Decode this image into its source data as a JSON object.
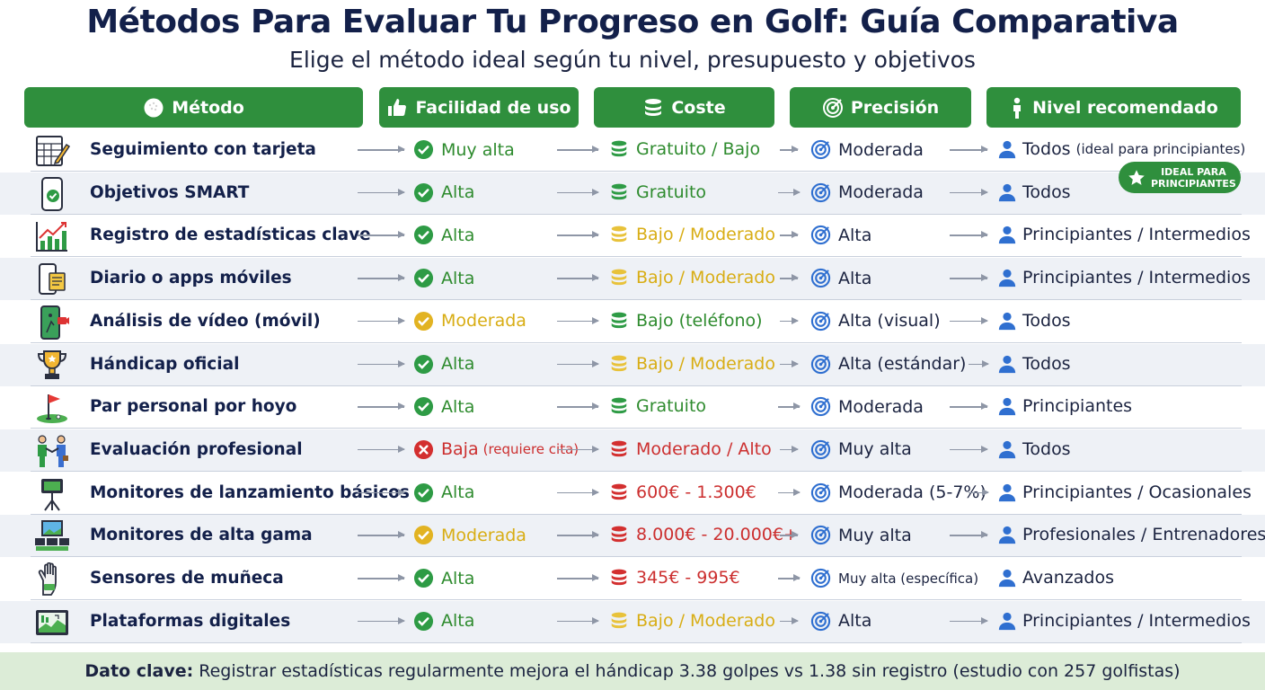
{
  "title": "Métodos Para Evaluar Tu Progreso en Golf: Guía Comparativa",
  "subtitle": "Elige el método ideal según tu nivel, presupuesto y objetivos",
  "headers": {
    "method": "Método",
    "ease": "Facilidad de uso",
    "cost": "Coste",
    "precision": "Precisión",
    "level": "Nivel recomendado"
  },
  "rows": [
    {
      "icon": "scorecard-pencil-icon",
      "method": "Seguimiento con tarjeta",
      "ease": "Muy alta",
      "ease_status": "check",
      "cost": "Gratuito / Bajo",
      "cost_level": "green",
      "precision": "Moderada",
      "level": "Todos",
      "level_note": "(ideal para principiantes)"
    },
    {
      "icon": "smartphone-check-icon",
      "method": "Objetivos SMART",
      "ease": "Alta",
      "ease_status": "check",
      "cost": "Gratuito",
      "cost_level": "green",
      "precision": "Moderada",
      "level": "Todos"
    },
    {
      "icon": "bar-chart-growth-icon",
      "method": "Registro de estadísticas clave",
      "ease": "Alta",
      "ease_status": "check",
      "cost": "Bajo / Moderado",
      "cost_level": "yellow",
      "precision": "Alta",
      "level": "Principiantes / Intermedios"
    },
    {
      "icon": "phone-notebook-icon",
      "method": "Diario o apps móviles",
      "ease": "Alta",
      "ease_status": "check",
      "cost": "Bajo / Moderado",
      "cost_level": "yellow",
      "precision": "Alta",
      "level": "Principiantes / Intermedios"
    },
    {
      "icon": "phone-video-icon",
      "method": "Análisis de vídeo (móvil)",
      "ease": "Moderada",
      "ease_status": "moderate",
      "cost": "Bajo (teléfono)",
      "cost_level": "green",
      "precision": "Alta (visual)",
      "level": "Todos"
    },
    {
      "icon": "trophy-icon",
      "method": "Hándicap oficial",
      "ease": "Alta",
      "ease_status": "check",
      "cost": "Bajo / Moderado",
      "cost_level": "yellow",
      "precision": "Alta (estándar)",
      "level": "Todos"
    },
    {
      "icon": "golf-flag-icon",
      "method": "Par personal por hoyo",
      "ease": "Alta",
      "ease_status": "check",
      "cost": "Gratuito",
      "cost_level": "green",
      "precision": "Moderada",
      "level": "Principiantes"
    },
    {
      "icon": "handshake-coach-icon",
      "method": "Evaluación profesional",
      "ease": "Baja",
      "ease_note": "(requiere cita)",
      "ease_status": "low",
      "cost": "Moderado / Alto",
      "cost_level": "red",
      "precision": "Muy alta",
      "level": "Todos"
    },
    {
      "icon": "launch-monitor-icon",
      "method": "Monitores de lanzamiento básicos",
      "ease": "Alta",
      "ease_status": "check",
      "cost": "600€ - 1.300€",
      "cost_level": "red",
      "precision": "Moderada (5-7%)",
      "level": "Principiantes / Ocasionales"
    },
    {
      "icon": "simulator-screens-icon",
      "method": "Monitores de alta gama",
      "ease": "Moderada",
      "ease_status": "moderate",
      "cost": "8.000€ - 20.000€+",
      "cost_level": "red",
      "precision": "Muy alta",
      "level": "Profesionales / Entrenadores"
    },
    {
      "icon": "golf-glove-icon",
      "method": "Sensores de muñeca",
      "ease": "Alta",
      "ease_status": "check",
      "cost": "345€ - 995€",
      "cost_level": "red",
      "precision": "Muy alta (específica)",
      "level": "Avanzados"
    },
    {
      "icon": "digital-platform-icon",
      "method": "Plataformas digitales",
      "ease": "Alta",
      "ease_status": "check",
      "cost": "Bajo / Moderado",
      "cost_level": "yellow",
      "precision": "Alta",
      "level": "Principiantes / Intermedios"
    }
  ],
  "badge": {
    "line1": "IDEAL PARA",
    "line2": "PRINCIPIANTES"
  },
  "footer": {
    "label": "Dato clave:",
    "text": "Registrar estadísticas regularmente mejora el hándicap 3.38 golpes vs 1.38 sin registro (estudio con 257 golfistas)"
  },
  "colors": {
    "header_green": "#2f8f3d",
    "ok_green": "#2e8b2e",
    "moderate_yellow": "#d8ad14",
    "low_red": "#cc2f2f",
    "person_blue": "#2f6fd0",
    "target_blue": "#2f6fd0",
    "title_navy": "#13204a"
  }
}
